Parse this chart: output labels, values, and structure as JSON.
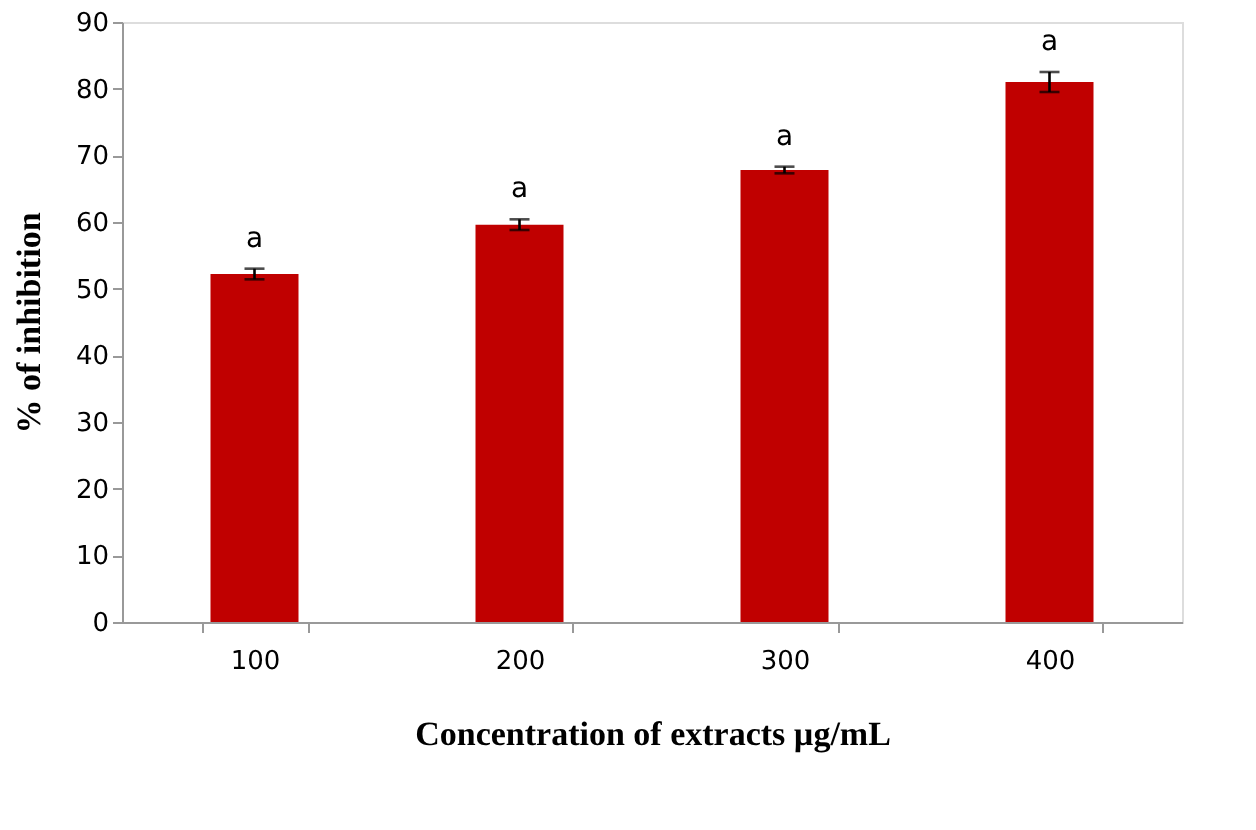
{
  "chart_data": {
    "type": "bar",
    "xlabel": "Concentration  of extracts µg/mL",
    "ylabel": "% of inhibition",
    "categories": [
      "100",
      "200",
      "300",
      "400"
    ],
    "values": [
      52.2,
      59.6,
      67.8,
      81.0
    ],
    "errors": [
      0.8,
      0.8,
      0.5,
      1.5
    ],
    "color": "#c00000",
    "ylim": [
      0,
      90
    ],
    "yticks": [
      0,
      10,
      20,
      30,
      40,
      50,
      60,
      70,
      80,
      90
    ],
    "grid": false,
    "annotations": [
      "a",
      "a",
      "a",
      "a"
    ]
  }
}
